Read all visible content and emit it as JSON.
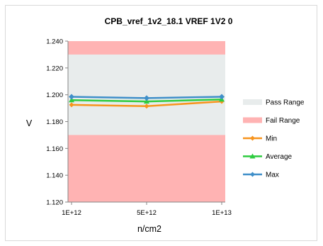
{
  "chart_data": {
    "type": "line",
    "title": "CPB_vref_1v2_18.1 VREF 1V2 0",
    "xlabel": "n/cm2",
    "ylabel": "V",
    "categories": [
      "1E+12",
      "5E+12",
      "1E+13"
    ],
    "ylim": [
      1.12,
      1.24
    ],
    "yticks": [
      "1.120",
      "1.140",
      "1.160",
      "1.180",
      "1.200",
      "1.220",
      "1.240"
    ],
    "pass_range": [
      1.17,
      1.23
    ],
    "grid": false,
    "legend_position": "right",
    "legend": [
      "Pass Range",
      "Fail Range",
      "Min",
      "Average",
      "Max"
    ],
    "series": [
      {
        "name": "Min",
        "values": [
          1.1925,
          1.1915,
          1.195
        ],
        "color": "#f7941d"
      },
      {
        "name": "Average",
        "values": [
          1.196,
          1.195,
          1.1965
        ],
        "color": "#2ecc40"
      },
      {
        "name": "Max",
        "values": [
          1.1985,
          1.1975,
          1.1985
        ],
        "color": "#3f8fc9"
      }
    ],
    "colors": {
      "pass": "#e8ecec",
      "fail": "#ffb3b3"
    }
  }
}
